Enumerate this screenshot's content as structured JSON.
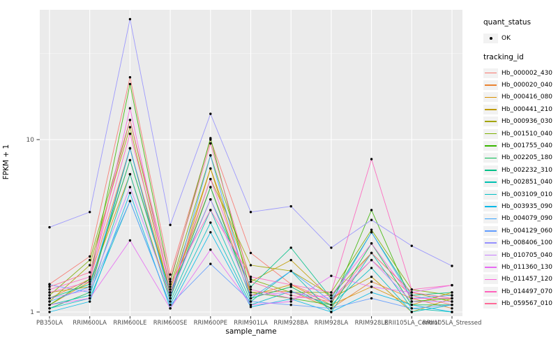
{
  "window": {
    "background": "#FFFFFF"
  },
  "axes": {
    "x_title": "sample_name",
    "y_title": "FPKM + 1",
    "tick_color": "#4D4D4D"
  },
  "legend": {
    "quant_status_title": "quant_status",
    "quant_status_value": "OK",
    "tracking_id_title": "tracking_id"
  },
  "chart_data": {
    "type": "line",
    "title": "",
    "xlabel": "sample_name",
    "ylabel": "FPKM + 1",
    "y_scale": "log10",
    "ylim": [
      0.95,
      56
    ],
    "y_tick_labels": [
      "1",
      "10"
    ],
    "y_tick_values": [
      1,
      10
    ],
    "y_minor_values": [
      3.162,
      31.62
    ],
    "legend_position": "right",
    "grid": "on",
    "panel_background": "#EBEBEB",
    "gridline_color": "#FFFFFF",
    "point_color": "#000000",
    "quant_status": "OK",
    "categories": [
      "PB350LA",
      "RRIM600LA",
      "RRIM600LE",
      "RRIM600SE",
      "RRIM600PE",
      "RRIM901LA",
      "RRIM928BA",
      "RRIM928LA",
      "RRIM928LE",
      "RRII105LA_Control",
      "RRII105LA_Stressed"
    ],
    "series": [
      {
        "name": "Hb_000002_430",
        "color": "#F8766D",
        "values": [
          1.45,
          2.1,
          23.0,
          1.65,
          10.0,
          2.2,
          1.45,
          1.15,
          2.0,
          1.25,
          1.1
        ]
      },
      {
        "name": "Hb_000020_040",
        "color": "#EA8331",
        "values": [
          1.2,
          1.55,
          8.9,
          1.3,
          5.3,
          1.3,
          1.32,
          1.05,
          1.5,
          1.2,
          1.05
        ]
      },
      {
        "name": "Hb_000416_080",
        "color": "#D89000",
        "values": [
          1.1,
          1.5,
          6.3,
          1.2,
          6.8,
          1.25,
          1.44,
          1.1,
          1.4,
          1.1,
          1.3
        ]
      },
      {
        "name": "Hb_000441_210",
        "color": "#C09B00",
        "values": [
          1.3,
          1.4,
          7.6,
          1.35,
          6.8,
          1.5,
          2.0,
          1.2,
          1.6,
          1.0,
          1.2
        ]
      },
      {
        "name": "Hb_000936_030",
        "color": "#A3A500",
        "values": [
          1.15,
          1.87,
          11.8,
          1.25,
          5.9,
          1.87,
          1.73,
          1.25,
          2.2,
          1.3,
          1.15
        ]
      },
      {
        "name": "Hb_001510_040",
        "color": "#7CAE00",
        "values": [
          1.25,
          2.0,
          13.0,
          1.4,
          8.1,
          1.55,
          1.3,
          1.3,
          3.0,
          1.35,
          1.25
        ]
      },
      {
        "name": "Hb_001755_040",
        "color": "#39B600",
        "values": [
          1.1,
          1.55,
          21.0,
          1.5,
          10.2,
          1.3,
          1.2,
          1.1,
          3.9,
          1.15,
          1.2
        ]
      },
      {
        "name": "Hb_002205_180",
        "color": "#00BB4E",
        "values": [
          1.05,
          1.3,
          8.9,
          1.2,
          5.3,
          1.2,
          1.4,
          1.05,
          2.5,
          1.1,
          1.1
        ]
      },
      {
        "name": "Hb_002232_310",
        "color": "#00C087",
        "values": [
          1.2,
          1.45,
          7.6,
          1.3,
          4.5,
          1.4,
          2.36,
          1.2,
          2.9,
          1.25,
          1.3
        ]
      },
      {
        "name": "Hb_002851_040",
        "color": "#00C0B2",
        "values": [
          1.1,
          1.25,
          6.3,
          1.15,
          3.9,
          1.15,
          1.73,
          1.0,
          2.2,
          1.05,
          1.0
        ]
      },
      {
        "name": "Hb_003109_010",
        "color": "#00BFC4",
        "values": [
          1.05,
          1.2,
          4.4,
          1.1,
          3.3,
          1.1,
          1.32,
          1.1,
          1.8,
          1.0,
          1.1
        ]
      },
      {
        "name": "Hb_003935_090",
        "color": "#00B8E7",
        "values": [
          1.0,
          1.15,
          4.9,
          1.05,
          2.9,
          1.07,
          1.19,
          1.0,
          1.3,
          1.1,
          1.0
        ]
      },
      {
        "name": "Hb_004079_090",
        "color": "#35A2FF",
        "values": [
          1.15,
          1.4,
          8.9,
          1.2,
          8.1,
          1.2,
          1.73,
          1.15,
          2.9,
          1.2,
          1.25
        ]
      },
      {
        "name": "Hb_004129_060",
        "color": "#619CFF",
        "values": [
          1.44,
          1.3,
          4.4,
          1.1,
          1.9,
          1.15,
          1.1,
          1.05,
          1.2,
          1.05,
          1.1
        ]
      },
      {
        "name": "Hb_008406_100",
        "color": "#9590FF",
        "values": [
          3.1,
          3.8,
          50.0,
          3.2,
          14.1,
          3.8,
          4.1,
          2.36,
          3.42,
          2.42,
          1.85
        ]
      },
      {
        "name": "Hb_010705_040",
        "color": "#C77CFF",
        "values": [
          1.2,
          1.35,
          5.3,
          1.25,
          4.5,
          1.25,
          1.3,
          1.2,
          2.0,
          1.15,
          1.15
        ]
      },
      {
        "name": "Hb_011360_130",
        "color": "#E76BF3",
        "values": [
          1.1,
          1.2,
          2.6,
          1.05,
          2.3,
          1.1,
          1.15,
          1.62,
          1.4,
          1.3,
          1.43
        ]
      },
      {
        "name": "Hb_011457_120",
        "color": "#FA62DB",
        "values": [
          1.3,
          1.5,
          15.2,
          1.3,
          5.9,
          1.35,
          1.2,
          1.25,
          2.5,
          1.2,
          1.2
        ]
      },
      {
        "name": "Hb_014497_070",
        "color": "#FF62BC",
        "values": [
          1.35,
          1.6,
          10.8,
          1.45,
          3.9,
          1.6,
          1.44,
          1.3,
          7.7,
          1.35,
          1.43
        ]
      },
      {
        "name": "Hb_059567_010",
        "color": "#FF6A98",
        "values": [
          1.4,
          1.7,
          13.0,
          1.55,
          9.5,
          1.5,
          1.25,
          1.15,
          2.2,
          1.3,
          1.2
        ]
      }
    ]
  }
}
